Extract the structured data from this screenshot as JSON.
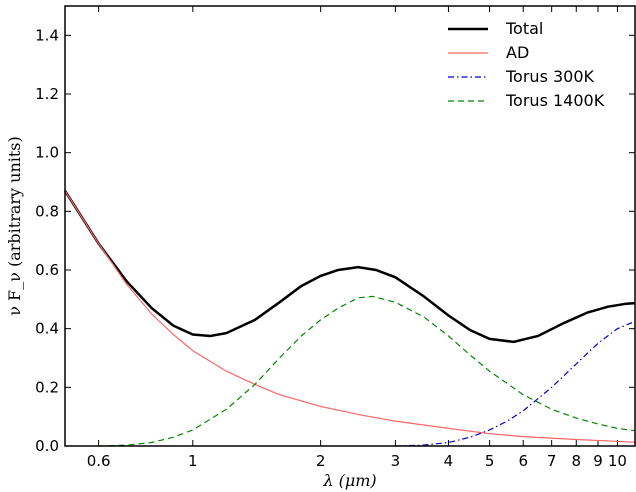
{
  "chart_data": {
    "type": "line",
    "xlabel": "λ (μm)",
    "ylabel": "ν F_ν (arbitrary units)",
    "xscale": "log",
    "xlim": [
      0.5,
      11
    ],
    "ylim": [
      0,
      1.5
    ],
    "grid": false,
    "legend_position": "top-right",
    "xticks": [
      0.6,
      1,
      2,
      3,
      4,
      5,
      6,
      7,
      8,
      9,
      10
    ],
    "xtick_labels": [
      "0.6",
      "1",
      "2",
      "3",
      "4",
      "5",
      "6",
      "7",
      "8",
      "9",
      "10"
    ],
    "yticks": [
      0,
      0.2,
      0.4,
      0.6,
      0.8,
      1.0,
      1.2,
      1.4
    ],
    "ytick_labels": [
      "0.0",
      "0.2",
      "0.4",
      "0.6",
      "0.8",
      "1.0",
      "1.2",
      "1.4"
    ],
    "series": [
      {
        "name": "Total",
        "color": "#000000",
        "dash": "solid",
        "x": [
          0.5,
          0.6,
          0.7,
          0.8,
          0.9,
          1.0,
          1.1,
          1.2,
          1.4,
          1.6,
          1.8,
          2.0,
          2.2,
          2.45,
          2.7,
          3.0,
          3.5,
          4.0,
          4.5,
          5.0,
          5.7,
          6.5,
          7.5,
          8.5,
          9.5,
          10.5,
          11.0
        ],
        "y": [
          0.87,
          0.69,
          0.56,
          0.47,
          0.41,
          0.38,
          0.375,
          0.385,
          0.43,
          0.49,
          0.545,
          0.58,
          0.6,
          0.61,
          0.6,
          0.575,
          0.51,
          0.445,
          0.395,
          0.365,
          0.355,
          0.375,
          0.42,
          0.455,
          0.475,
          0.485,
          0.487
        ]
      },
      {
        "name": "AD",
        "color": "#ff6666",
        "dash": "solid",
        "x": [
          0.5,
          0.6,
          0.7,
          0.8,
          0.9,
          1.0,
          1.2,
          1.4,
          1.6,
          2.0,
          2.5,
          3.0,
          4.0,
          5.0,
          6.0,
          8.0,
          11.0
        ],
        "y": [
          0.87,
          0.69,
          0.55,
          0.45,
          0.38,
          0.325,
          0.255,
          0.21,
          0.175,
          0.135,
          0.105,
          0.085,
          0.06,
          0.042,
          0.032,
          0.022,
          0.013
        ]
      },
      {
        "name": "Torus 300K",
        "color": "#0000cc",
        "dash": "dashdot",
        "x": [
          3.0,
          3.5,
          4.0,
          4.5,
          5.0,
          5.5,
          6.0,
          7.0,
          8.0,
          9.0,
          10.0,
          11.0
        ],
        "y": [
          0.0,
          0.003,
          0.012,
          0.03,
          0.055,
          0.085,
          0.12,
          0.2,
          0.28,
          0.35,
          0.4,
          0.425
        ]
      },
      {
        "name": "Torus 1400K",
        "color": "#008800",
        "dash": "dashed",
        "x": [
          0.6,
          0.7,
          0.8,
          0.9,
          1.0,
          1.2,
          1.4,
          1.6,
          1.8,
          2.0,
          2.2,
          2.45,
          2.65,
          3.0,
          3.5,
          4.0,
          4.5,
          5.0,
          6.0,
          7.0,
          8.0,
          9.0,
          10.0,
          11.0
        ],
        "y": [
          0.0,
          0.003,
          0.012,
          0.03,
          0.055,
          0.125,
          0.21,
          0.3,
          0.375,
          0.43,
          0.47,
          0.505,
          0.51,
          0.49,
          0.44,
          0.375,
          0.31,
          0.255,
          0.175,
          0.125,
          0.095,
          0.075,
          0.06,
          0.052
        ]
      }
    ]
  }
}
